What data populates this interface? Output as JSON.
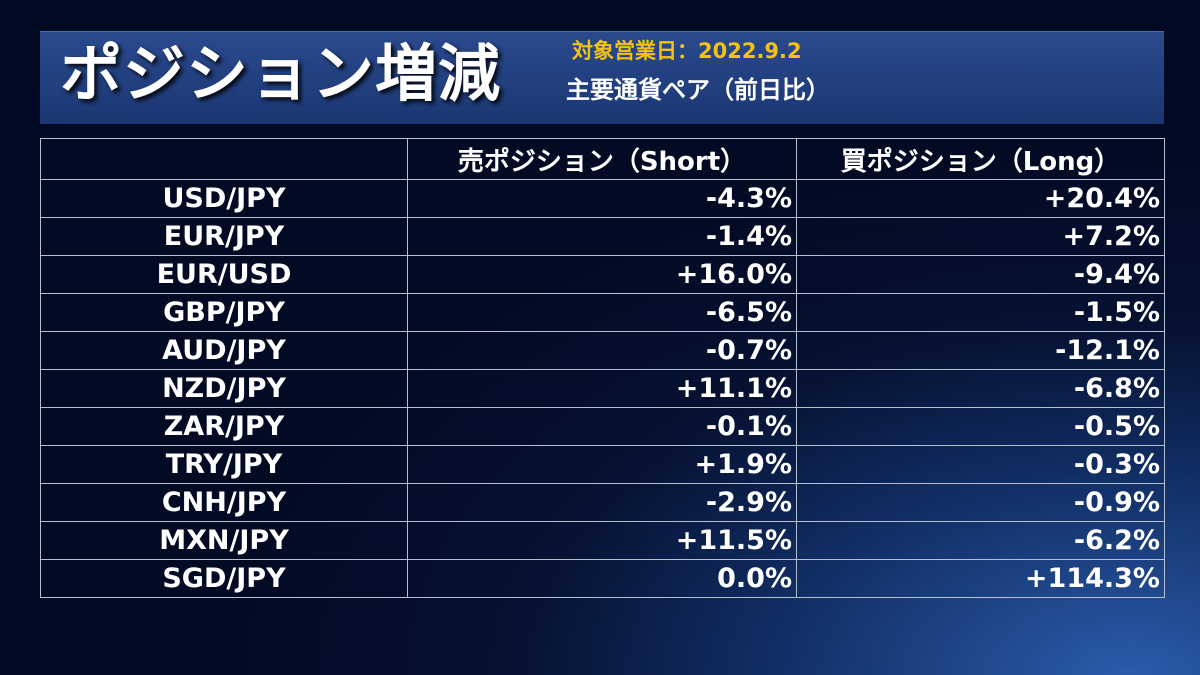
{
  "header": {
    "title": "ポジション増減",
    "date_line": "対象営業日：2022.9.2",
    "subtitle": "主要通貨ペア（前日比）"
  },
  "table": {
    "columns": [
      "",
      "売ポジション（Short）",
      "買ポジション（Long）"
    ],
    "rows": [
      {
        "pair": "USD/JPY",
        "short": "-4.3%",
        "long": "+20.4%"
      },
      {
        "pair": "EUR/JPY",
        "short": "-1.4%",
        "long": "+7.2%"
      },
      {
        "pair": "EUR/USD",
        "short": "+16.0%",
        "long": "-9.4%"
      },
      {
        "pair": "GBP/JPY",
        "short": "-6.5%",
        "long": "-1.5%"
      },
      {
        "pair": "AUD/JPY",
        "short": "-0.7%",
        "long": "-12.1%"
      },
      {
        "pair": "NZD/JPY",
        "short": "+11.1%",
        "long": "-6.8%"
      },
      {
        "pair": "ZAR/JPY",
        "short": "-0.1%",
        "long": "-0.5%"
      },
      {
        "pair": "TRY/JPY",
        "short": "+1.9%",
        "long": "-0.3%"
      },
      {
        "pair": "CNH/JPY",
        "short": "-2.9%",
        "long": "-0.9%"
      },
      {
        "pair": "MXN/JPY",
        "short": "+11.5%",
        "long": "-6.2%"
      },
      {
        "pair": "SGD/JPY",
        "short": "0.0%",
        "long": "+114.3%"
      }
    ]
  },
  "colors": {
    "background": "#061233",
    "header_band": "#1f3b7a",
    "date_text": "#f2c314",
    "text": "#ffffff",
    "grid": "#b4bfd2"
  },
  "chart_data": {
    "type": "table",
    "title": "ポジション増減",
    "subtitle": "主要通貨ペア（前日比）",
    "date": "2022.9.2",
    "columns": [
      "",
      "売ポジション（Short）",
      "買ポジション（Long）"
    ],
    "categories": [
      "USD/JPY",
      "EUR/JPY",
      "EUR/USD",
      "GBP/JPY",
      "AUD/JPY",
      "NZD/JPY",
      "ZAR/JPY",
      "TRY/JPY",
      "CNH/JPY",
      "MXN/JPY",
      "SGD/JPY"
    ],
    "series": [
      {
        "name": "売ポジション（Short）",
        "values": [
          -4.3,
          -1.4,
          16.0,
          -6.5,
          -0.7,
          11.1,
          -0.1,
          1.9,
          -2.9,
          11.5,
          0.0
        ]
      },
      {
        "name": "買ポジション（Long）",
        "values": [
          20.4,
          7.2,
          -9.4,
          -1.5,
          -12.1,
          -6.8,
          -0.5,
          -0.3,
          -0.9,
          -6.2,
          114.3
        ]
      }
    ],
    "unit": "%"
  }
}
